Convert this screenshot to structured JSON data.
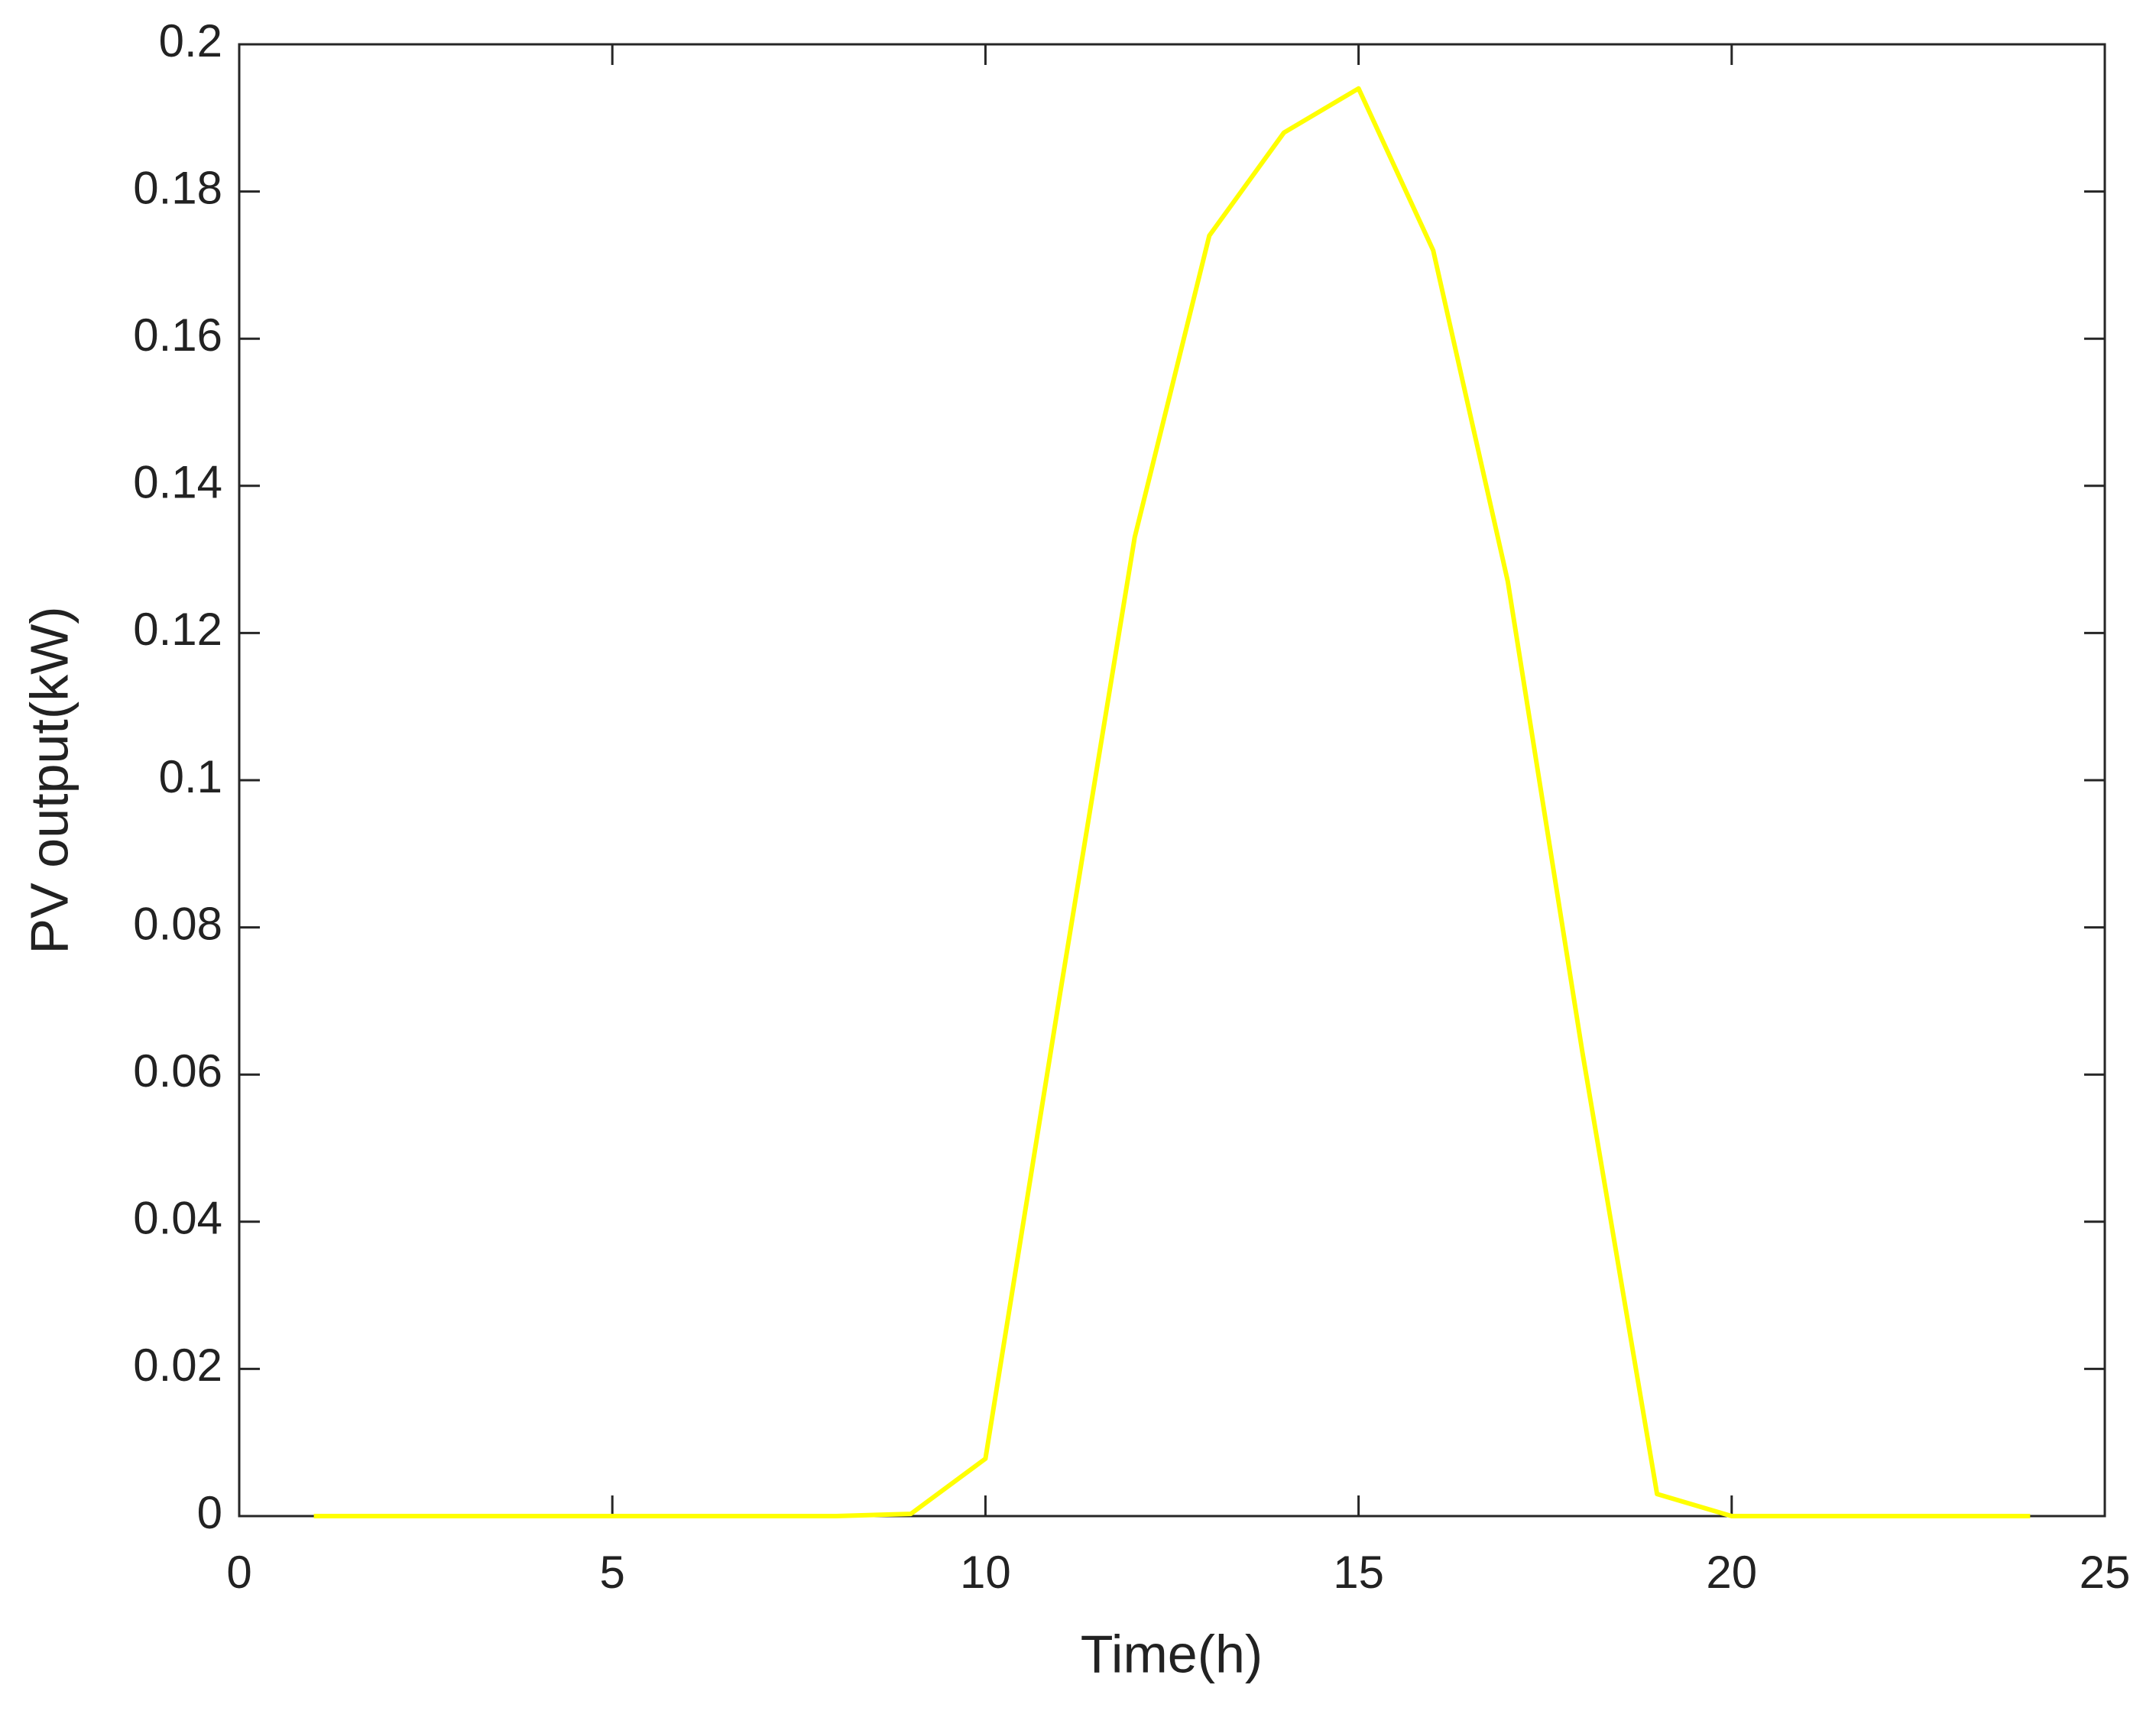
{
  "chart_data": {
    "type": "line",
    "xlabel": "Time(h)",
    "ylabel": "PV output(kW)",
    "x": [
      1,
      2,
      3,
      4,
      5,
      6,
      7,
      8,
      9,
      10,
      11,
      12,
      13,
      14,
      15,
      16,
      17,
      18,
      19,
      20,
      21,
      22,
      23,
      24
    ],
    "series": [
      {
        "name": "PV output",
        "color": "#ffff00",
        "values": [
          0,
          0,
          0,
          0,
          0,
          0,
          0,
          0,
          0.0003,
          0.0078,
          0.071,
          0.133,
          0.174,
          0.188,
          0.194,
          0.172,
          0.127,
          0.063,
          0.003,
          0,
          0,
          0,
          0,
          0
        ]
      }
    ],
    "xlim": [
      0,
      25
    ],
    "xticks": [
      0,
      5,
      10,
      15,
      20,
      25
    ],
    "ylim": [
      0,
      0.2
    ],
    "yticks": [
      0,
      0.02,
      0.04,
      0.06,
      0.08,
      0.1,
      0.12,
      0.14,
      0.16,
      0.18,
      0.2
    ],
    "grid": false
  }
}
